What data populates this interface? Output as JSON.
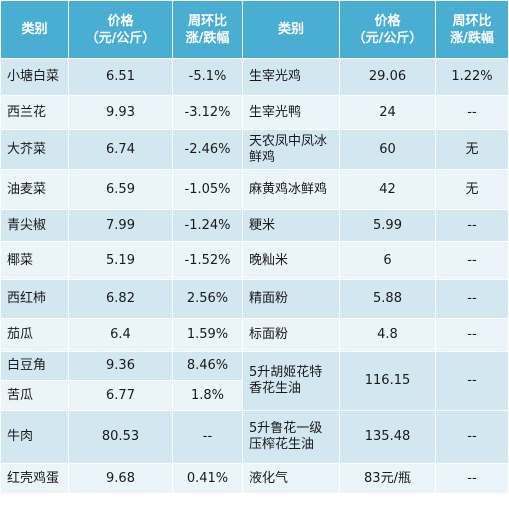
{
  "headers": [
    "类别",
    "价格\n（元/公斤）",
    "周环比\n涨/跌幅",
    "类别",
    "价格\n（元/公斤）",
    "周环比\n涨/跌幅"
  ],
  "left": [
    {
      "item": "小塘白菜",
      "price": "6.51",
      "change": "-5.1%"
    },
    {
      "item": "西兰花",
      "price": "9.93",
      "change": "-3.12%"
    },
    {
      "item": "大芥菜",
      "price": "6.74",
      "change": "-2.46%"
    },
    {
      "item": "油麦菜",
      "price": "6.59",
      "change": "-1.05%"
    },
    {
      "item": "青尖椒",
      "price": "7.99",
      "change": "-1.24%"
    },
    {
      "item": "椰菜",
      "price": "5.19",
      "change": "-1.52%"
    },
    {
      "item": "西红柿",
      "price": "6.82",
      "change": "2.56%"
    },
    {
      "item": "茄瓜",
      "price": "6.4",
      "change": "1.59%"
    },
    {
      "item": "白豆角",
      "price": "9.36",
      "change": "8.46%"
    },
    {
      "item": "苦瓜",
      "price": "6.77",
      "change": "1.8%"
    },
    {
      "item": "牛肉",
      "price": "80.53",
      "change": "--"
    },
    {
      "item": "红壳鸡蛋",
      "price": "9.68",
      "change": "0.41%"
    }
  ],
  "right": [
    {
      "item": "生宰光鸡",
      "price": "29.06",
      "change": "1.22%"
    },
    {
      "item": "生宰光鸭",
      "price": "24",
      "change": "--"
    },
    {
      "item": "天农凤中凤冰鲜鸡",
      "price": "60",
      "change": "无"
    },
    {
      "item": "麻黄鸡冰鲜鸡",
      "price": "42",
      "change": "无"
    },
    {
      "item": "粳米",
      "price": "5.99",
      "change": "--"
    },
    {
      "item": "晚籼米",
      "price": "6",
      "change": "--"
    },
    {
      "item": "精面粉",
      "price": "5.88",
      "change": "--"
    },
    {
      "item": "标面粉",
      "price": "4.8",
      "change": "--"
    },
    {
      "item": "5升胡姬花特香花生油",
      "price": "116.15",
      "change": "--"
    },
    {
      "item": "5升鲁花一级压榨花生油",
      "price": "135.48",
      "change": "--"
    },
    {
      "item": "液化气",
      "price": "83元/瓶",
      "change": "--"
    }
  ]
}
